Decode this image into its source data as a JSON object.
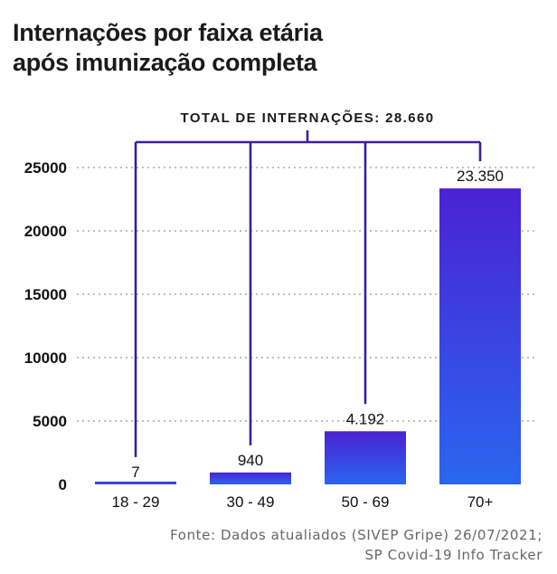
{
  "title_lines": [
    "Internações por faixa etária",
    "após imunização completa"
  ],
  "source_lines": [
    "Fonte: Dados atualiados (SIVEP Gripe) 26/07/2021;",
    "SP Covid-19 Info Tracker"
  ],
  "chart_data": {
    "type": "bar",
    "categories": [
      "18 - 29",
      "30 - 49",
      "50 - 69",
      "70+"
    ],
    "values": [
      7,
      940,
      4192,
      23350
    ],
    "value_labels": [
      "7",
      "940",
      "4.192",
      "23.350"
    ],
    "annotation": "TOTAL DE INTERNAÇÕES: 28.660",
    "ylim": [
      0,
      25000
    ],
    "yticks": [
      0,
      5000,
      10000,
      15000,
      20000,
      25000
    ],
    "grid": true,
    "xlabel": "",
    "ylabel": "",
    "colors": {
      "bar_top": "#4a22d4",
      "bar_bottom": "#2a66ee",
      "bracket": "#3d1f9e",
      "grid": "#aaaaaa"
    }
  }
}
